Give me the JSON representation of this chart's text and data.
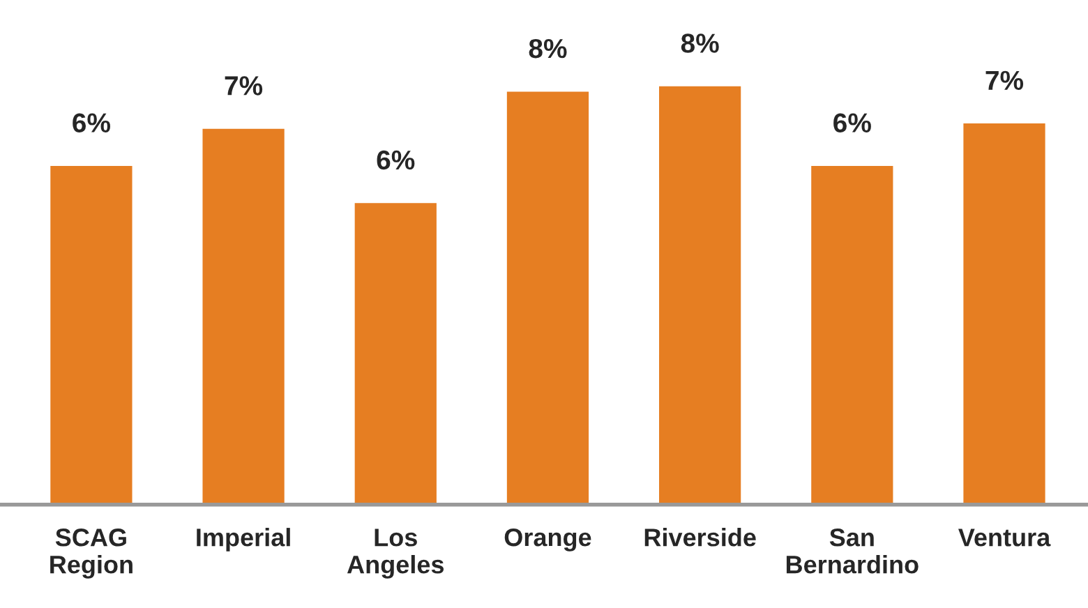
{
  "chart_data": {
    "type": "bar",
    "categories": [
      "SCAG\nRegion",
      "Imperial",
      "Los\nAngeles",
      "Orange",
      "Riverside",
      "San\nBernardino",
      "Ventura"
    ],
    "values": [
      6.4,
      7.1,
      5.7,
      7.8,
      7.9,
      6.4,
      7.2
    ],
    "value_labels": [
      "6%",
      "7%",
      "6%",
      "8%",
      "8%",
      "6%",
      "7%"
    ],
    "color": "#e67e22",
    "grid": false,
    "legend": false
  }
}
